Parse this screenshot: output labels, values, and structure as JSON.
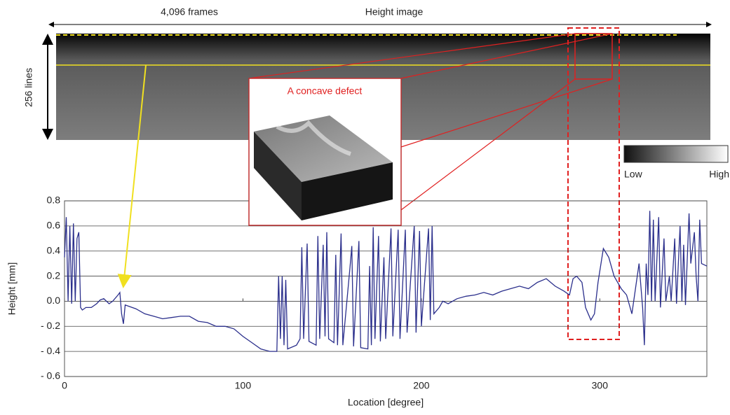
{
  "chart_data": {
    "type": "line",
    "annotations": [
      "4,096 frames",
      "Height image",
      "256 lines",
      "A concave defect",
      "Low",
      "High"
    ],
    "xlabel": "Location [degree]",
    "ylabel": "Height [mm]",
    "color": "#2b2f8c",
    "x": [
      0,
      1,
      2,
      3,
      4,
      5,
      6,
      7,
      8,
      9,
      10,
      12,
      15,
      18,
      20,
      22,
      25,
      27,
      30,
      31,
      32,
      33,
      34,
      36,
      40,
      45,
      50,
      55,
      60,
      65,
      70,
      75,
      80,
      85,
      90,
      95,
      100,
      105,
      110,
      115,
      119,
      120,
      121,
      122,
      123,
      124,
      125,
      130,
      132,
      133,
      134,
      136,
      137,
      141,
      142,
      143,
      145,
      146,
      147,
      148,
      151,
      152,
      153,
      155,
      156,
      160,
      161,
      162,
      165,
      166,
      170,
      171,
      172,
      173,
      174,
      176,
      177,
      179,
      180,
      183,
      184,
      187,
      188,
      191,
      192,
      196,
      197,
      199,
      200,
      204,
      205,
      206,
      207,
      210,
      212,
      215,
      220,
      225,
      230,
      235,
      240,
      245,
      250,
      255,
      260,
      265,
      270,
      275,
      280,
      283,
      285,
      287,
      290,
      292,
      295,
      297,
      299,
      302,
      305,
      308,
      312,
      315,
      318,
      320,
      322,
      324,
      325,
      326,
      327,
      328,
      329,
      330,
      331,
      333,
      334,
      336,
      337,
      339,
      340,
      342,
      343,
      345,
      346,
      347,
      348,
      350,
      351,
      353,
      354,
      355,
      356,
      357,
      360
    ],
    "values": [
      0.35,
      0.67,
      0.0,
      0.6,
      -0.02,
      0.62,
      0.0,
      0.5,
      0.55,
      -0.05,
      -0.07,
      -0.05,
      -0.05,
      -0.02,
      0.01,
      0.02,
      -0.02,
      0.0,
      0.05,
      0.07,
      -0.1,
      -0.18,
      -0.03,
      -0.04,
      -0.06,
      -0.1,
      -0.12,
      -0.14,
      -0.13,
      -0.12,
      -0.12,
      -0.16,
      -0.17,
      -0.2,
      -0.2,
      -0.22,
      -0.28,
      -0.33,
      -0.38,
      -0.4,
      -0.4,
      0.2,
      -0.3,
      0.2,
      -0.35,
      0.17,
      -0.38,
      -0.35,
      -0.3,
      0.43,
      -0.3,
      0.46,
      -0.32,
      -0.35,
      0.52,
      -0.3,
      0.45,
      -0.28,
      0.55,
      -0.3,
      -0.33,
      0.37,
      -0.35,
      0.54,
      -0.35,
      0.27,
      0.44,
      -0.36,
      0.48,
      -0.37,
      -0.38,
      0.28,
      -0.35,
      0.59,
      -0.3,
      0.52,
      -0.32,
      0.35,
      -0.3,
      0.58,
      -0.28,
      0.57,
      -0.3,
      0.57,
      -0.25,
      0.6,
      -0.25,
      0.56,
      -0.2,
      0.58,
      -0.15,
      0.6,
      -0.1,
      -0.05,
      0.0,
      -0.02,
      0.02,
      0.04,
      0.05,
      0.07,
      0.05,
      0.08,
      0.1,
      0.12,
      0.1,
      0.15,
      0.18,
      0.12,
      0.08,
      0.05,
      0.18,
      0.2,
      0.15,
      -0.05,
      -0.15,
      -0.1,
      0.15,
      0.42,
      0.35,
      0.2,
      0.1,
      0.05,
      -0.1,
      0.1,
      0.3,
      -0.05,
      -0.35,
      0.3,
      0.05,
      0.72,
      0.0,
      0.65,
      0.0,
      0.67,
      -0.05,
      0.5,
      0.0,
      0.2,
      0.0,
      0.5,
      -0.02,
      0.6,
      0.0,
      0.45,
      -0.03,
      0.7,
      0.3,
      0.55,
      0.2,
      0.0,
      0.65,
      0.3,
      0.28
    ],
    "xlim": [
      0,
      360
    ],
    "xticks": [
      0,
      100,
      200,
      300
    ],
    "ylim": [
      -0.6,
      0.8
    ],
    "yticks": [
      {
        "value": -0.6,
        "label": "- 0.6"
      },
      {
        "value": -0.4,
        "label": "- 0.4"
      },
      {
        "value": -0.2,
        "label": "- 0.2"
      },
      {
        "value": 0,
        "label": "0.0"
      },
      0.2,
      0.4,
      0.6,
      0.8
    ],
    "grid": true
  }
}
